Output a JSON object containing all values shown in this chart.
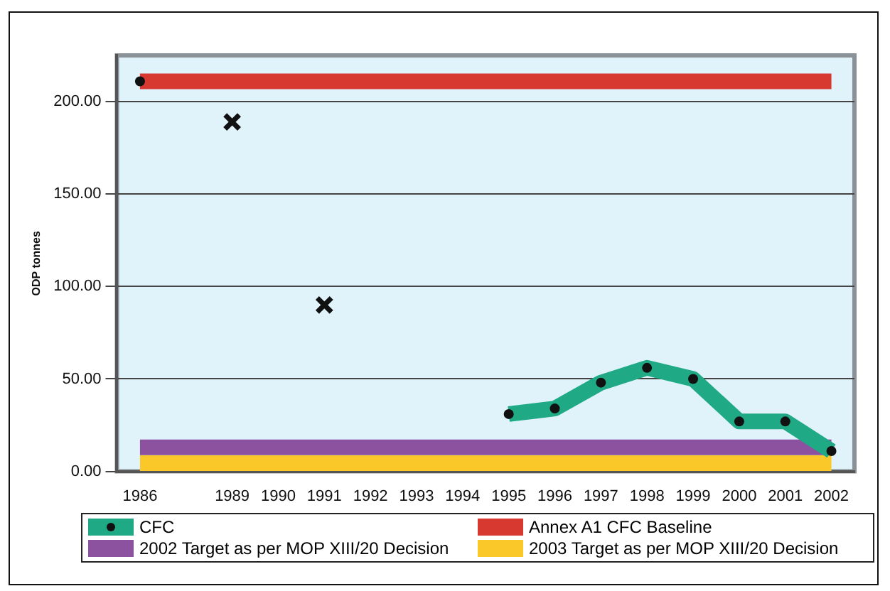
{
  "chart_data": {
    "type": "line",
    "ylabel": "ODP tonnes",
    "categories": [
      "1986",
      null,
      "1989",
      "1990",
      "1991",
      "1992",
      "1993",
      "1994",
      "1995",
      "1996",
      "1997",
      "1998",
      "1999",
      "2000",
      "2001",
      "2002"
    ],
    "series": [
      {
        "name": "CFC",
        "color": "#1faa85",
        "marker": "none",
        "values": [
          null,
          null,
          null,
          null,
          null,
          null,
          null,
          null,
          31,
          34,
          48,
          56,
          50,
          27,
          27,
          11
        ]
      },
      {
        "type": "scatter",
        "color": "#111111",
        "marker": "circle",
        "values": [
          211,
          null,
          null,
          null,
          null,
          null,
          null,
          null,
          31,
          34,
          48,
          56,
          50,
          27,
          27,
          11
        ]
      },
      {
        "name": "Annex A1 CFC Baseline",
        "color": "#d7382f",
        "marker": "none",
        "values": [
          211,
          211,
          211,
          211,
          211,
          211,
          211,
          211,
          211,
          211,
          211,
          211,
          211,
          211,
          211,
          211
        ]
      },
      {
        "name": "2002 Target as per MOP XIII/20 Decision",
        "color": "#8c52a0",
        "marker": "none",
        "values": [
          13,
          13,
          13,
          13,
          13,
          13,
          13,
          13,
          13,
          13,
          13,
          13,
          13,
          13,
          13,
          13
        ]
      },
      {
        "name": "2003 Target as per MOP XIII/20 Decision",
        "color": "#fbc82a",
        "marker": "none",
        "values": [
          4.5,
          4.5,
          4.5,
          4.5,
          4.5,
          4.5,
          4.5,
          4.5,
          4.5,
          4.5,
          4.5,
          4.5,
          4.5,
          4.5,
          4.5,
          4.5
        ]
      },
      {
        "type": "scatter",
        "color": "#111111",
        "marker": "cross",
        "values": [
          null,
          null,
          189,
          null,
          90,
          null,
          null,
          null,
          null,
          null,
          null,
          null,
          null,
          null,
          null,
          null
        ]
      }
    ],
    "ylim": [
      0,
      225
    ],
    "yticks": [
      {
        "value": 0,
        "label": "0.00"
      },
      {
        "value": 50,
        "label": "50.00"
      },
      {
        "value": 100,
        "label": "100.00"
      },
      {
        "value": 150,
        "label": "150.00"
      },
      {
        "value": 200,
        "label": "200.00"
      }
    ],
    "grid": "y",
    "legend": "bottom"
  }
}
